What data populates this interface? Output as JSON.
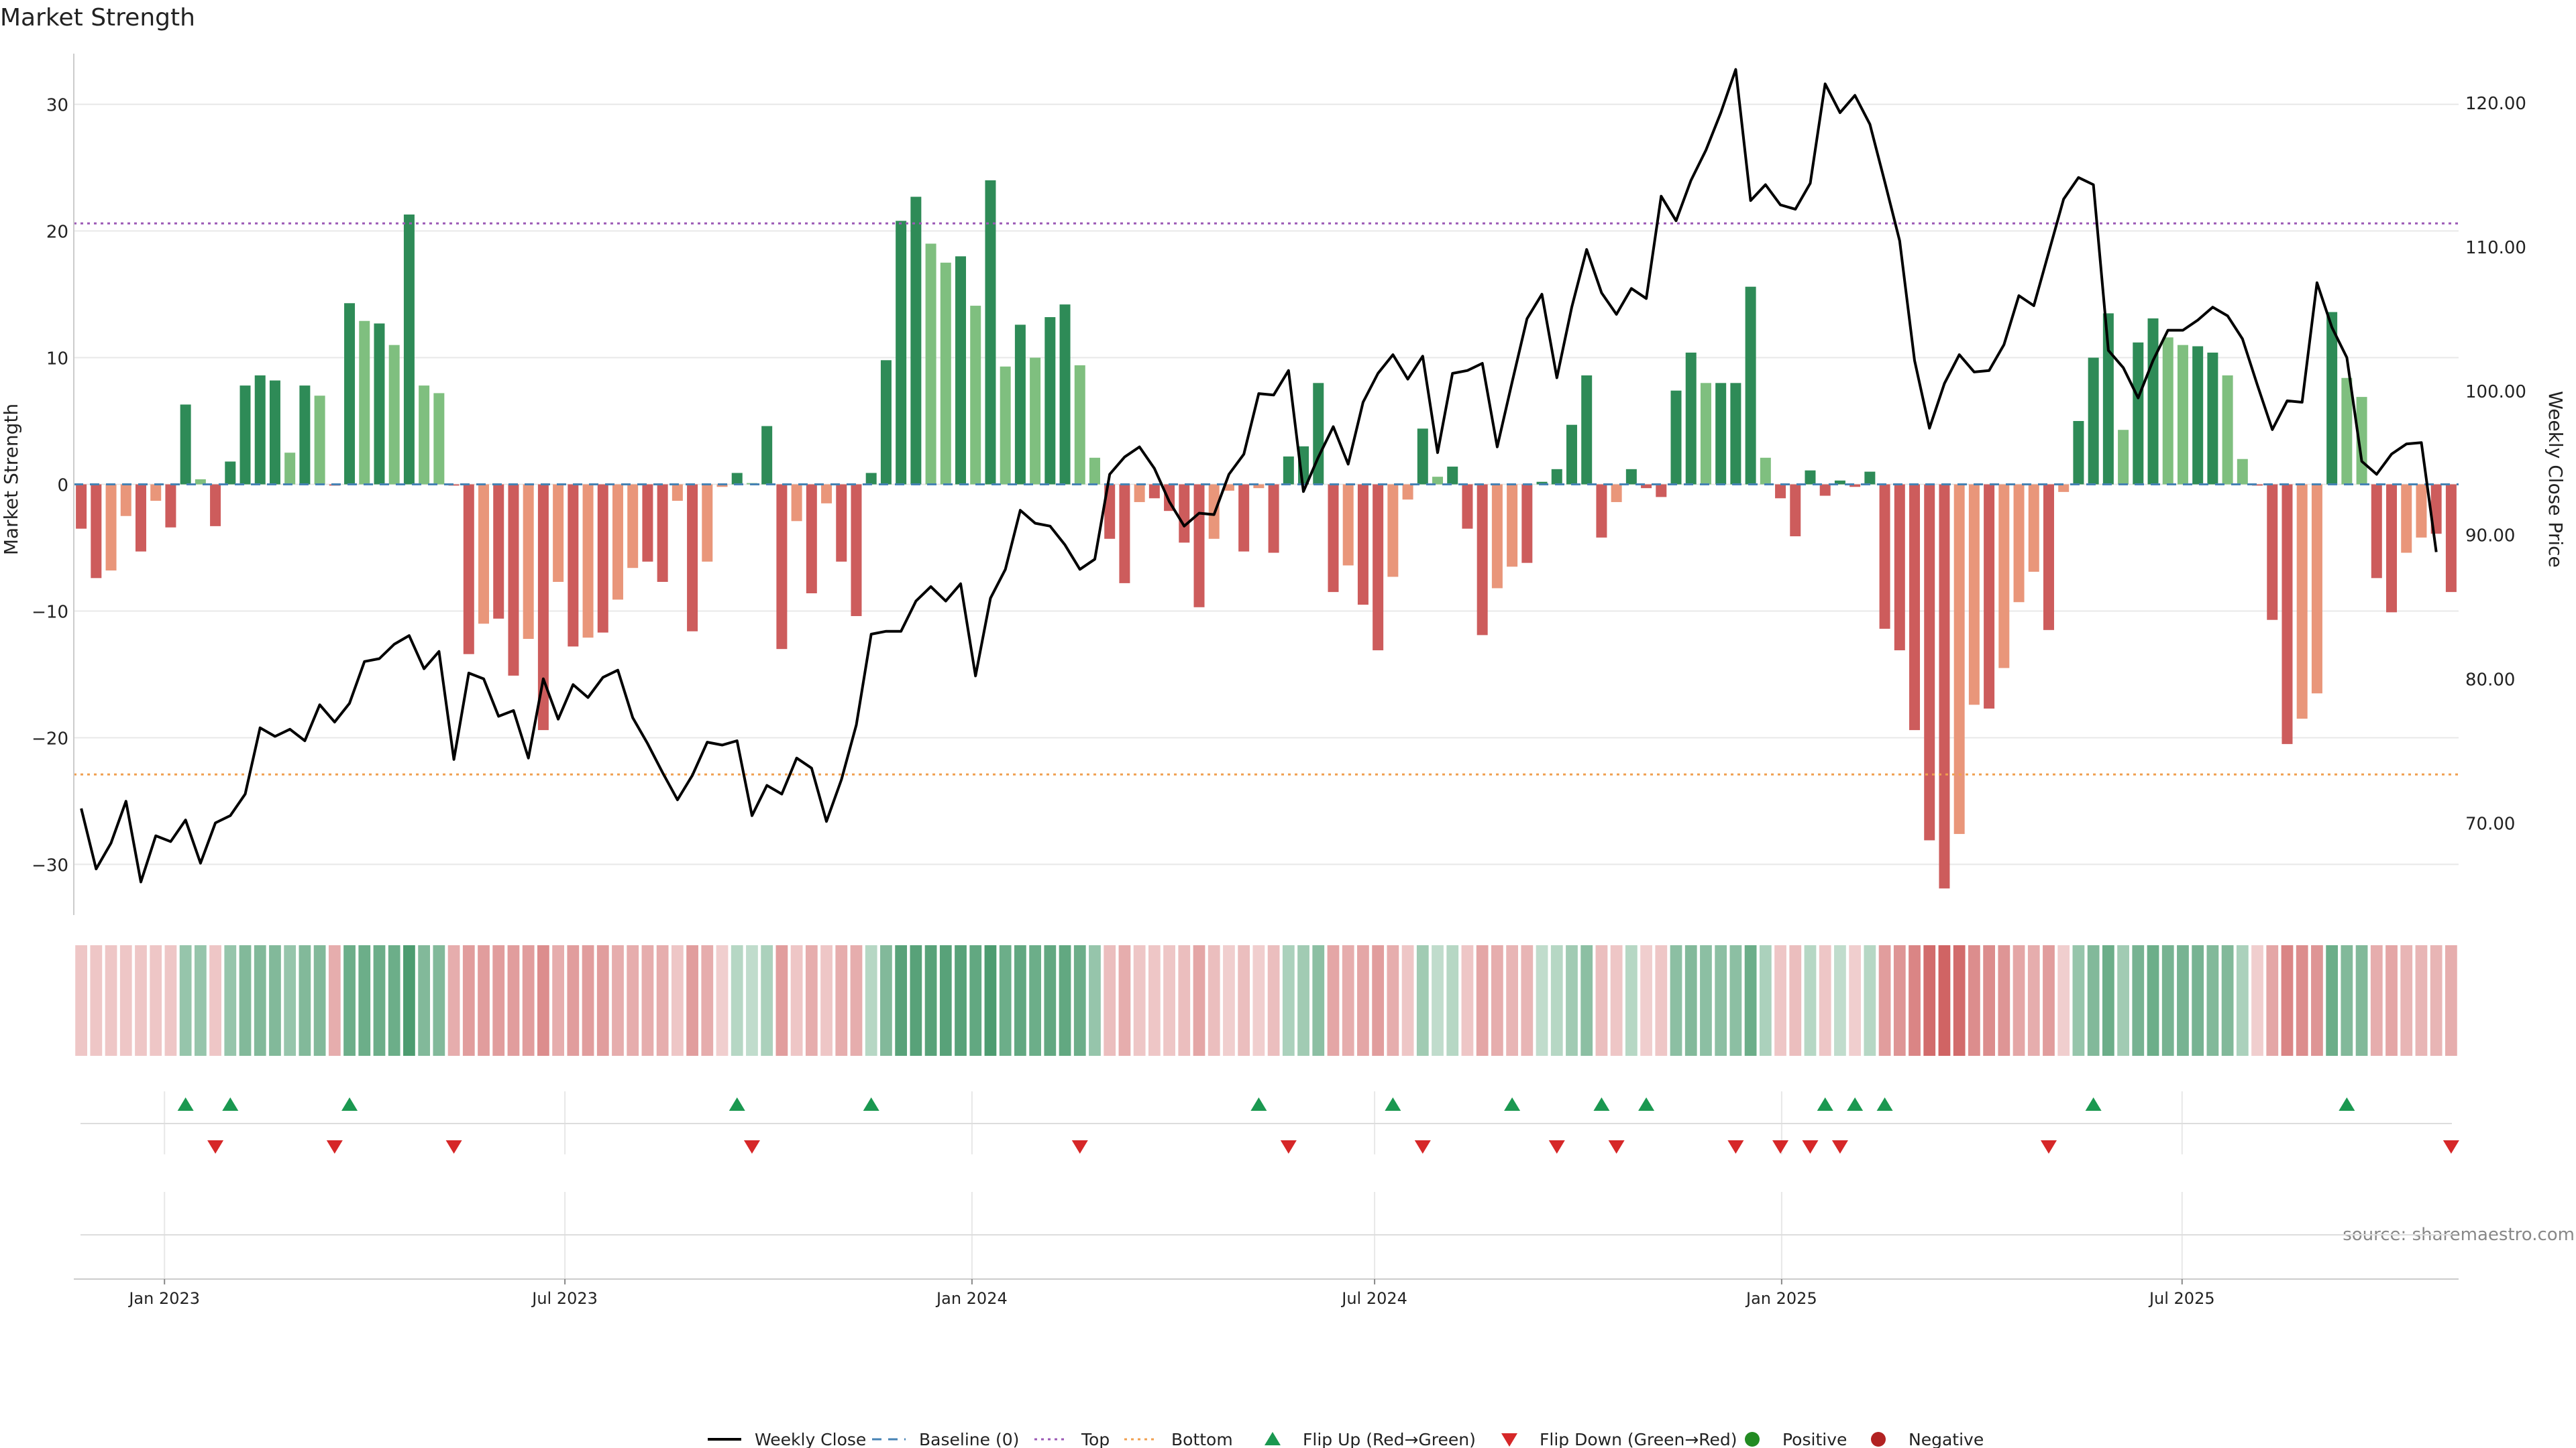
{
  "chart_data": {
    "type": "bar",
    "title": "Market Strength",
    "ylabel_left": "Market Strength",
    "ylabel_right": "Weekly Close Price",
    "source": "source: sharemaestro.com",
    "ylim_left": [
      -34,
      34
    ],
    "yticks_left": [
      30,
      20,
      10,
      0,
      -10,
      -20,
      -30
    ],
    "yticklabels_left": [
      "30",
      "20",
      "10",
      "0",
      "−10",
      "−20",
      "−30"
    ],
    "ylim_right": [
      63.6,
      123.4
    ],
    "yticks_right": [
      120,
      110,
      100,
      90,
      80,
      70
    ],
    "yticklabels_right": [
      "120.00",
      "110.00",
      "100.00",
      "90.00",
      "80.00",
      "70.00"
    ],
    "x_start": "2022-11-21",
    "x_end": "2025-11-03",
    "x_tick_dates": [
      "2023-01-01",
      "2023-07-01",
      "2024-01-01",
      "2024-07-01",
      "2025-01-01",
      "2025-07-01"
    ],
    "x_tick_labels": [
      "Jan 2023",
      "Jul 2023",
      "Jan 2024",
      "Jul 2024",
      "Jan 2025",
      "Jul 2025"
    ],
    "top_line": 20.6,
    "bottom_line": -22.9,
    "grid": true,
    "legend_position": "bottom-center",
    "legend": [
      {
        "label": "Weekly Close",
        "style": "line"
      },
      {
        "label": "Baseline (0)",
        "style": "dash"
      },
      {
        "label": "Top",
        "style": "dotted"
      },
      {
        "label": "Bottom",
        "style": "dotted"
      },
      {
        "label": "Flip Up (Red→Green)",
        "style": "tri-up"
      },
      {
        "label": "Flip Down (Green→Red)",
        "style": "tri-down"
      },
      {
        "label": "Positive",
        "style": "dot-green"
      },
      {
        "label": "Negative",
        "style": "dot-red"
      }
    ],
    "strength": [
      -3.5,
      -7.4,
      -6.8,
      -2.5,
      -5.3,
      -1.3,
      -3.4,
      6.3,
      0.4,
      -3.3,
      1.8,
      7.8,
      8.6,
      8.2,
      2.5,
      7.8,
      7.0,
      -0.1,
      14.3,
      12.9,
      12.7,
      11.0,
      21.3,
      7.8,
      7.2,
      -0.1,
      -13.4,
      -11.0,
      -10.6,
      -15.1,
      -12.2,
      -19.4,
      -7.7,
      -12.8,
      -12.1,
      -11.7,
      -9.1,
      -6.6,
      -6.1,
      -7.7,
      -1.3,
      -11.6,
      -6.1,
      -0.2,
      0.9,
      0.1,
      4.6,
      -13.0,
      -2.9,
      -8.6,
      -1.5,
      -6.1,
      -10.4,
      0.9,
      9.8,
      20.8,
      22.7,
      19.0,
      17.5,
      18.0,
      14.1,
      24.0,
      9.3,
      12.6,
      10.0,
      13.2,
      14.2,
      9.4,
      2.1,
      -4.3,
      -7.8,
      -1.4,
      -1.1,
      -2.1,
      -4.6,
      -9.7,
      -4.3,
      -0.5,
      -5.3,
      -0.3,
      -5.4,
      2.2,
      3.0,
      8.0,
      -8.5,
      -6.4,
      -9.5,
      -13.1,
      -7.3,
      -1.2,
      4.4,
      0.6,
      1.4,
      -3.5,
      -11.9,
      -8.2,
      -6.5,
      -6.2,
      0.2,
      1.2,
      4.7,
      8.6,
      -4.2,
      -1.4,
      1.2,
      -0.3,
      -1.0,
      7.4,
      10.4,
      8.0,
      8.0,
      8.0,
      15.6,
      2.1,
      -1.1,
      -4.1,
      1.1,
      -0.9,
      0.3,
      -0.2,
      1.0,
      -11.4,
      -13.1,
      -19.4,
      -28.1,
      -31.9,
      -27.6,
      -17.4,
      -17.7,
      -14.5,
      -9.3,
      -6.9,
      -11.5,
      -0.6,
      5.0,
      10.0,
      13.5,
      4.3,
      11.2,
      13.1,
      11.6,
      11.0,
      10.9,
      10.4,
      8.6,
      2.0,
      -0.1,
      -10.7,
      -20.5,
      -18.5,
      -16.5,
      13.6,
      8.4,
      6.9,
      -7.4,
      -10.1,
      -5.4,
      -4.2,
      -3.9,
      -8.5
    ],
    "close": [
      71.0,
      66.8,
      68.6,
      71.5,
      65.9,
      69.1,
      68.7,
      70.2,
      67.2,
      70.0,
      70.5,
      72.0,
      76.6,
      76.0,
      76.5,
      75.7,
      78.2,
      77.0,
      78.3,
      81.2,
      81.4,
      82.4,
      83.0,
      80.7,
      81.9,
      74.4,
      80.4,
      80.0,
      77.4,
      77.8,
      74.5,
      80.0,
      77.2,
      79.6,
      78.7,
      80.1,
      80.6,
      77.3,
      75.5,
      73.5,
      71.6,
      73.3,
      75.6,
      75.4,
      75.7,
      70.5,
      72.6,
      72.0,
      74.5,
      73.8,
      70.1,
      73.0,
      76.8,
      83.1,
      83.3,
      83.3,
      85.4,
      86.4,
      85.4,
      86.6,
      80.2,
      85.6,
      87.6,
      91.7,
      90.8,
      90.6,
      89.3,
      87.6,
      88.3,
      94.2,
      95.4,
      96.1,
      94.6,
      92.3,
      90.6,
      91.5,
      91.4,
      94.2,
      95.6,
      99.8,
      99.7,
      101.4,
      93.0,
      95.4,
      97.5,
      94.9,
      99.2,
      101.2,
      102.5,
      100.8,
      102.4,
      95.7,
      101.2,
      101.4,
      101.9,
      96.1,
      100.6,
      105.0,
      106.7,
      100.9,
      105.8,
      109.8,
      106.8,
      105.3,
      107.1,
      106.4,
      113.5,
      111.8,
      114.6,
      116.7,
      119.3,
      122.3,
      113.2,
      114.3,
      112.9,
      112.6,
      114.4,
      121.3,
      119.3,
      120.5,
      118.5,
      114.5,
      110.4,
      102.1,
      97.4,
      100.5,
      102.5,
      101.3,
      101.4,
      103.2,
      106.6,
      105.9,
      109.6,
      113.3,
      114.8,
      114.3,
      102.8,
      101.6,
      99.5,
      102.1,
      104.2,
      104.2,
      104.9,
      105.8,
      105.2,
      103.6,
      100.4,
      97.3,
      99.3,
      99.2,
      107.5,
      104.4,
      102.3,
      95.1,
      94.2,
      95.6,
      96.3,
      96.4,
      88.8
    ],
    "colorband_intensity": [
      0.35,
      0.35,
      0.35,
      0.35,
      0.35,
      0.35,
      0.35,
      0.5,
      0.5,
      0.35,
      0.5,
      0.6,
      0.6,
      0.6,
      0.5,
      0.6,
      0.6,
      0.5,
      0.7,
      0.7,
      0.7,
      0.7,
      0.85,
      0.6,
      0.6,
      0.5,
      0.6,
      0.6,
      0.6,
      0.6,
      0.6,
      0.7,
      0.5,
      0.6,
      0.6,
      0.6,
      0.5,
      0.5,
      0.5,
      0.5,
      0.35,
      0.6,
      0.5,
      0.3,
      0.35,
      0.3,
      0.4,
      0.6,
      0.35,
      0.5,
      0.35,
      0.5,
      0.5,
      0.35,
      0.6,
      0.8,
      0.8,
      0.8,
      0.8,
      0.8,
      0.75,
      0.85,
      0.7,
      0.75,
      0.7,
      0.75,
      0.75,
      0.7,
      0.5,
      0.4,
      0.5,
      0.35,
      0.35,
      0.35,
      0.4,
      0.55,
      0.4,
      0.3,
      0.4,
      0.3,
      0.4,
      0.4,
      0.45,
      0.55,
      0.55,
      0.5,
      0.55,
      0.6,
      0.5,
      0.35,
      0.45,
      0.3,
      0.35,
      0.35,
      0.55,
      0.5,
      0.45,
      0.45,
      0.3,
      0.35,
      0.45,
      0.55,
      0.4,
      0.35,
      0.35,
      0.3,
      0.35,
      0.55,
      0.6,
      0.55,
      0.55,
      0.55,
      0.7,
      0.4,
      0.35,
      0.4,
      0.35,
      0.35,
      0.3,
      0.3,
      0.35,
      0.6,
      0.65,
      0.75,
      0.9,
      0.95,
      0.9,
      0.7,
      0.7,
      0.65,
      0.55,
      0.5,
      0.6,
      0.3,
      0.5,
      0.6,
      0.7,
      0.45,
      0.65,
      0.7,
      0.65,
      0.65,
      0.65,
      0.6,
      0.6,
      0.4,
      0.3,
      0.55,
      0.75,
      0.7,
      0.65,
      0.7,
      0.6,
      0.6,
      0.5,
      0.55,
      0.45,
      0.45,
      0.45,
      0.5
    ],
    "flip_up_idx": [
      7,
      10,
      18,
      44,
      53,
      79,
      88,
      96,
      102,
      105,
      117,
      119,
      121,
      135,
      152
    ],
    "flip_down_idx": [
      9,
      17,
      25,
      45,
      67,
      81,
      90,
      99,
      103,
      111,
      114,
      116,
      118,
      132,
      159
    ]
  },
  "colors": {
    "pos_dark": "#2e8b57",
    "pos_light": "#7fbf7f",
    "neg_dark": "#cd5c5c",
    "neg_light": "#e9967a",
    "close_line": "#000000",
    "baseline": "#4682b4",
    "top_line": "#9b59b6",
    "bottom_line": "#f0a050",
    "flip_up": "#1a9850",
    "flip_down": "#d62728",
    "positive_dot": "#228b22",
    "negative_dot": "#b22222",
    "grid": "#e8e8e8"
  }
}
